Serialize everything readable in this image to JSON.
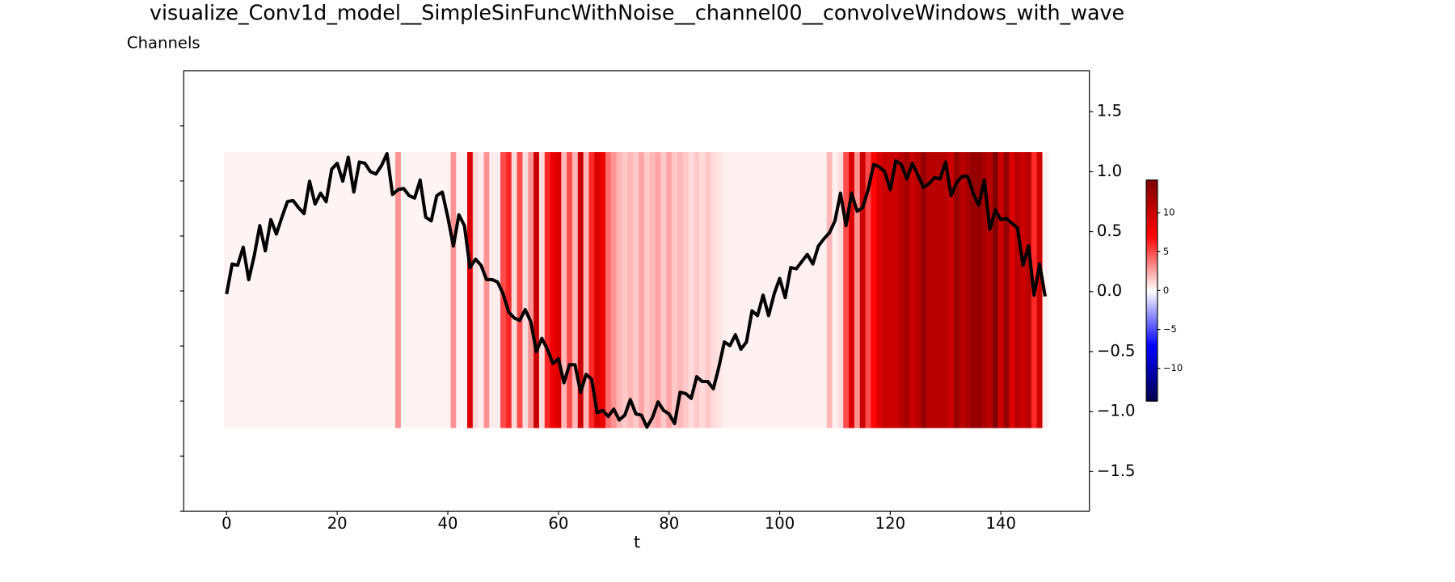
{
  "chart_data": {
    "type": "line",
    "title": "visualize_Conv1d_model__SimpleSinFuncWithNoise__channel00__convolveWindows_with_wave",
    "subtitle": "Channels",
    "x_label": "t",
    "x": [
      0,
      1,
      2,
      3,
      4,
      5,
      6,
      7,
      8,
      9,
      10,
      11,
      12,
      13,
      14,
      15,
      16,
      17,
      18,
      19,
      20,
      21,
      22,
      23,
      24,
      25,
      26,
      27,
      28,
      29,
      30,
      31,
      32,
      33,
      34,
      35,
      36,
      37,
      38,
      39,
      40,
      41,
      42,
      43,
      44,
      45,
      46,
      47,
      48,
      49,
      50,
      51,
      52,
      53,
      54,
      55,
      56,
      57,
      58,
      59,
      60,
      61,
      62,
      63,
      64,
      65,
      66,
      67,
      68,
      69,
      70,
      71,
      72,
      73,
      74,
      75,
      76,
      77,
      78,
      79,
      80,
      81,
      82,
      83,
      84,
      85,
      86,
      87,
      88,
      89,
      90,
      91,
      92,
      93,
      94,
      95,
      96,
      97,
      98,
      99,
      100,
      101,
      102,
      103,
      104,
      105,
      106,
      107,
      108,
      109,
      110,
      111,
      112,
      113,
      114,
      115,
      116,
      117,
      118,
      119,
      120,
      121,
      122,
      123,
      124,
      125,
      126,
      127,
      128,
      129,
      130,
      131,
      132,
      133,
      134,
      135,
      136,
      137,
      138,
      139,
      140,
      141,
      142,
      143,
      144,
      145,
      146,
      147,
      148
    ],
    "series": [
      {
        "color": "#000000",
        "axis": "y2",
        "values": [
          -0.02,
          0.23,
          0.22,
          0.37,
          0.1,
          0.3,
          0.55,
          0.34,
          0.6,
          0.48,
          0.62,
          0.75,
          0.76,
          0.7,
          0.65,
          0.92,
          0.73,
          0.82,
          0.75,
          1.02,
          1.07,
          0.92,
          1.12,
          0.83,
          1.08,
          1.07,
          1.0,
          0.98,
          1.05,
          1.15,
          0.81,
          0.85,
          0.86,
          0.8,
          0.78,
          0.93,
          0.62,
          0.59,
          0.8,
          0.83,
          0.62,
          0.38,
          0.64,
          0.55,
          0.2,
          0.27,
          0.22,
          0.1,
          0.1,
          0.08,
          -0.02,
          -0.17,
          -0.22,
          -0.24,
          -0.15,
          -0.25,
          -0.5,
          -0.39,
          -0.48,
          -0.6,
          -0.56,
          -0.76,
          -0.61,
          -0.61,
          -0.84,
          -0.69,
          -0.73,
          -1.01,
          -0.99,
          -1.04,
          -0.98,
          -1.07,
          -1.03,
          -0.9,
          -1.02,
          -1.03,
          -1.13,
          -1.05,
          -0.92,
          -0.99,
          -1.02,
          -1.1,
          -0.84,
          -0.85,
          -0.89,
          -0.71,
          -0.75,
          -0.75,
          -0.81,
          -0.63,
          -0.42,
          -0.45,
          -0.36,
          -0.48,
          -0.42,
          -0.16,
          -0.2,
          -0.03,
          -0.2,
          -0.02,
          0.11,
          -0.05,
          0.2,
          0.19,
          0.25,
          0.31,
          0.23,
          0.38,
          0.44,
          0.49,
          0.59,
          0.82,
          0.55,
          0.82,
          0.67,
          0.7,
          0.85,
          1.06,
          1.04,
          1.0,
          0.85,
          1.09,
          1.06,
          0.94,
          1.07,
          0.97,
          0.87,
          0.9,
          0.95,
          0.94,
          1.08,
          0.8,
          0.91,
          0.96,
          0.96,
          0.82,
          0.72,
          0.93,
          0.52,
          0.68,
          0.6,
          0.61,
          0.57,
          0.53,
          0.22,
          0.38,
          -0.03,
          0.23,
          -0.04
        ]
      }
    ],
    "xlim": [
      -7.75,
      156
    ],
    "xticks": [
      0,
      20,
      40,
      60,
      80,
      100,
      120,
      140
    ],
    "y2lim": [
      -1.83,
      1.84
    ],
    "y2ticks": [
      {
        "value": -1.5,
        "label": "−1.5"
      },
      {
        "value": -1.0,
        "label": "−1.0"
      },
      {
        "value": -0.5,
        "label": "−0.5"
      },
      {
        "value": 0.0,
        "label": "0.0"
      },
      0.5,
      {
        "value": 1.0,
        "label": "1.0"
      },
      1.5
    ],
    "heatmap": {
      "colormap": "seismic",
      "clim": [
        -14.2,
        14.2
      ],
      "cticks": [
        {
          "value": -10,
          "label": "−10"
        },
        {
          "value": -5,
          "label": "−5"
        },
        0,
        5,
        10
      ],
      "values": [
        0.3,
        0.3,
        0.3,
        0.3,
        0.3,
        0.3,
        0.3,
        0.3,
        0.3,
        0.3,
        0.3,
        0.3,
        0.3,
        0.3,
        0.3,
        0.3,
        0.3,
        0.3,
        0.3,
        0.3,
        0.3,
        0.3,
        0.3,
        0.3,
        0.3,
        0.3,
        0.3,
        0.3,
        0.3,
        0.3,
        0.3,
        3,
        0.3,
        0.3,
        0.3,
        0.3,
        0.3,
        0.3,
        0.3,
        0.3,
        0.3,
        3,
        0.3,
        0.3,
        9,
        1,
        0.5,
        3,
        0.5,
        0.5,
        5,
        6,
        1,
        5,
        1,
        3,
        10,
        1,
        6,
        8,
        9,
        2,
        5,
        2,
        10,
        2,
        6,
        9,
        8,
        4,
        3,
        2,
        1.5,
        2,
        1.5,
        2.5,
        1.5,
        2,
        2.5,
        1.5,
        2.5,
        1.5,
        2,
        1.5,
        1,
        1.5,
        1,
        1.5,
        1,
        0.8,
        0.5,
        0.4,
        0.4,
        0.4,
        0.4,
        0.4,
        0.4,
        0.4,
        0.4,
        0.4,
        0.4,
        0.4,
        0.4,
        0.4,
        0.4,
        0.4,
        0.4,
        0.4,
        0.4,
        2,
        0.4,
        1,
        5,
        9,
        3,
        10,
        5,
        7,
        9,
        10,
        10,
        10,
        11,
        12,
        10,
        11,
        13,
        11,
        11,
        11,
        11,
        10,
        13,
        11,
        12,
        13,
        13,
        12,
        11,
        14,
        10,
        13,
        9,
        11,
        10,
        11,
        6,
        10,
        0.4
      ]
    }
  }
}
